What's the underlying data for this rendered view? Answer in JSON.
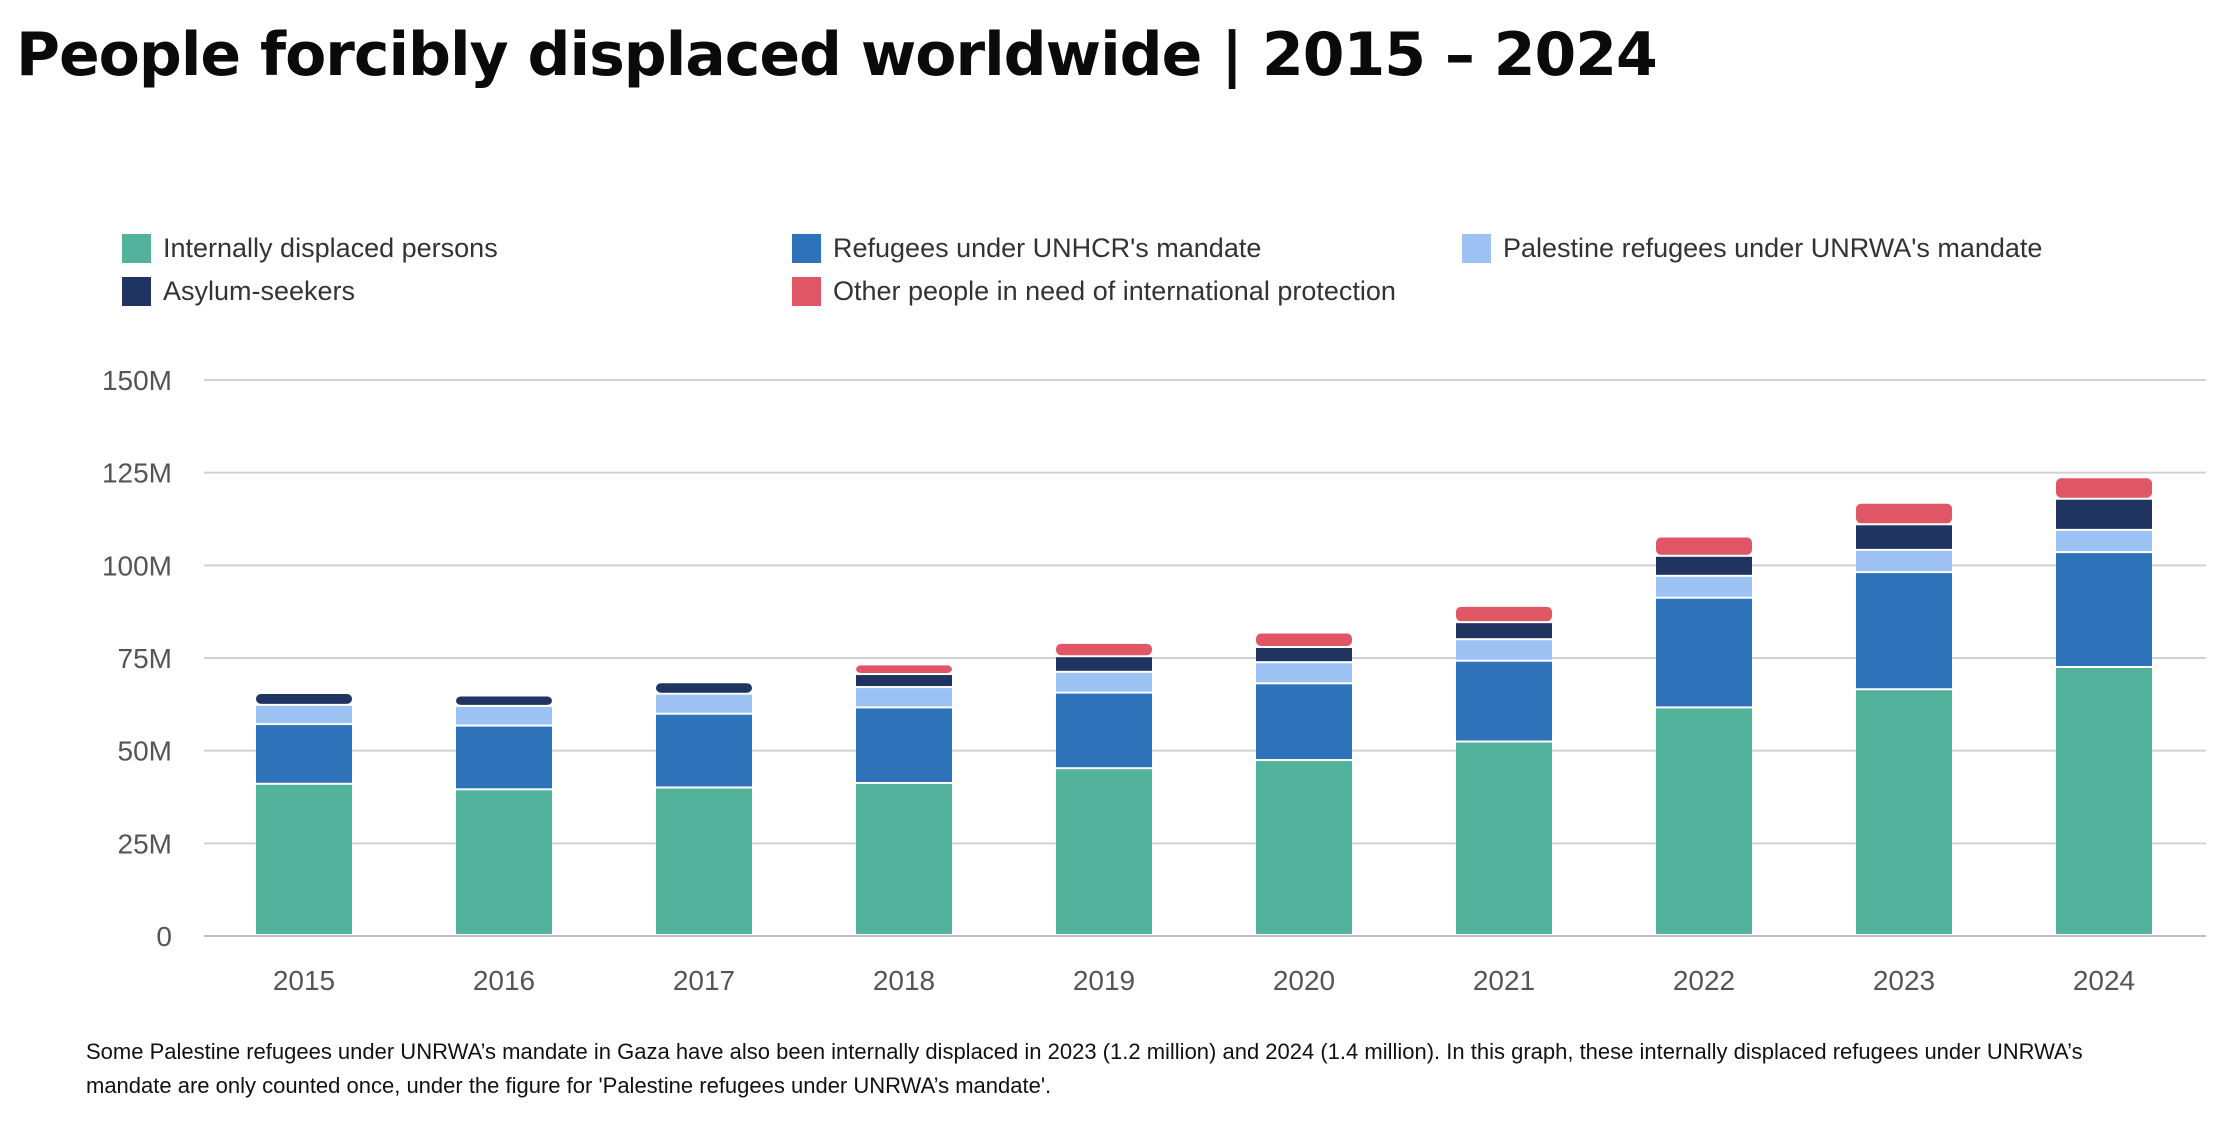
{
  "title": "People forcibly displaced worldwide | 2015 – 2024",
  "footnote": "Some Palestine refugees under UNRWA’s mandate in Gaza have also been internally displaced in 2023 (1.2 million) and 2024 (1.4 million). In this graph, these internally displaced refugees under UNRWA’s mandate are only counted once, under the figure for 'Palestine refugees under UNRWA’s mandate'.",
  "chart_data": {
    "type": "bar",
    "stacked": true,
    "title": "People forcibly displaced worldwide | 2015 – 2024",
    "xlabel": "",
    "ylabel": "",
    "ylim": [
      0,
      150
    ],
    "y_ticks": [
      0,
      25,
      50,
      75,
      100,
      125,
      150
    ],
    "y_tick_labels": [
      "0",
      "25M",
      "50M",
      "75M",
      "100M",
      "125M",
      "150M"
    ],
    "grid": true,
    "legend_position": "top",
    "categories": [
      "2015",
      "2016",
      "2017",
      "2018",
      "2019",
      "2020",
      "2021",
      "2022",
      "2023",
      "2024"
    ],
    "series": [
      {
        "name": "Internally displaced persons",
        "color": "#52b29b",
        "values": [
          40.8,
          39.3,
          39.8,
          41.0,
          45.0,
          47.2,
          52.2,
          61.4,
          66.3,
          72.3
        ]
      },
      {
        "name": "Refugees under UNHCR's mandate",
        "color": "#2e72b9",
        "values": [
          16.1,
          17.2,
          19.9,
          20.4,
          20.4,
          20.7,
          21.8,
          29.6,
          31.6,
          31.0
        ]
      },
      {
        "name": "Palestine refugees under UNRWA's mandate",
        "color": "#9cc2f4",
        "values": [
          5.2,
          5.3,
          5.4,
          5.5,
          5.6,
          5.7,
          5.8,
          5.9,
          6.0,
          6.0
        ]
      },
      {
        "name": "Asylum-seekers",
        "color": "#1f3461",
        "values": [
          3.2,
          2.8,
          3.1,
          3.5,
          4.2,
          4.1,
          4.6,
          5.4,
          6.9,
          8.4
        ]
      },
      {
        "name": "Other people in need of international protection",
        "color": "#e05664",
        "values": [
          0,
          0,
          0,
          2.6,
          3.6,
          3.9,
          4.4,
          5.2,
          5.8,
          5.8
        ]
      }
    ]
  }
}
